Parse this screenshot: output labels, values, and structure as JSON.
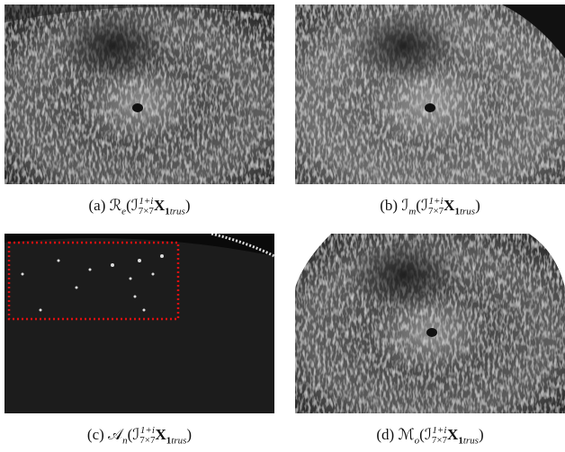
{
  "panels": [
    {
      "caption": [
        {
          "text": "(a) ℛ"
        },
        {
          "sub": "e"
        },
        {
          "text": "(ℐ"
        },
        {
          "sup": "1+i",
          "sub": "7×7"
        },
        {
          "bold": "X"
        },
        {
          "boldsub": "1"
        },
        {
          "sub": "trus"
        },
        {
          "text": ")"
        }
      ]
    },
    {
      "caption": [
        {
          "text": "(b) ℐ"
        },
        {
          "sub": "m"
        },
        {
          "text": "(ℐ"
        },
        {
          "sup": "1+i",
          "sub": "7×7"
        },
        {
          "bold": "X"
        },
        {
          "boldsub": "1"
        },
        {
          "sub": "trus"
        },
        {
          "text": ")"
        }
      ]
    },
    {
      "caption": [
        {
          "text": "(c) 𝒜"
        },
        {
          "sub": "n"
        },
        {
          "text": "(ℐ"
        },
        {
          "sup": "1+i",
          "sub": "7×7"
        },
        {
          "bold": "X"
        },
        {
          "boldsub": "1"
        },
        {
          "sub": "trus"
        },
        {
          "text": ")"
        }
      ]
    },
    {
      "caption": [
        {
          "text": "(d) ℳ"
        },
        {
          "sub": "o"
        },
        {
          "text": "(ℐ"
        },
        {
          "sup": "1+i",
          "sub": "7×7"
        },
        {
          "bold": "X"
        },
        {
          "boldsub": "1"
        },
        {
          "sub": "trus"
        },
        {
          "text": ")"
        }
      ]
    }
  ]
}
